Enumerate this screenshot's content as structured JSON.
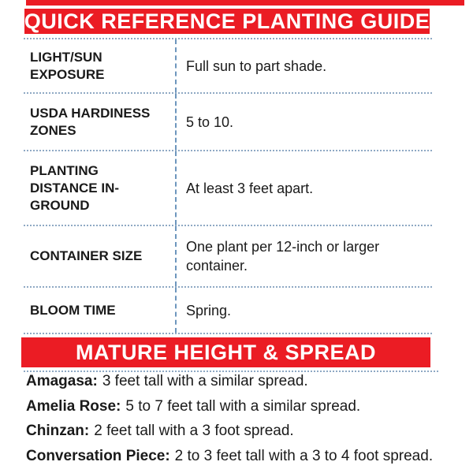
{
  "colors": {
    "accent_red": "#EB1C24",
    "border_blue": "#8FA9C4",
    "text": "#1A1A1A"
  },
  "header": {
    "title": "QUICK REFERENCE PLANTING GUIDE"
  },
  "table": {
    "rows": [
      {
        "label": "LIGHT/SUN EXPOSURE",
        "value": "Full sun to part shade."
      },
      {
        "label": "USDA HARDINESS ZONES",
        "value": "5 to 10."
      },
      {
        "label": "PLANTING DISTANCE IN-GROUND",
        "value": "At least 3 feet apart."
      },
      {
        "label": "CONTAINER SIZE",
        "value": "One plant per 12-inch or larger container."
      },
      {
        "label": "BLOOM TIME",
        "value": "Spring."
      }
    ]
  },
  "section2": {
    "title": "MATURE HEIGHT & SPREAD",
    "items": [
      {
        "name": "Amagasa:",
        "desc": "3 feet tall with a similar spread."
      },
      {
        "name": "Amelia Rose:",
        "desc": "5 to 7 feet tall with a similar spread."
      },
      {
        "name": "Chinzan:",
        "desc": "2 feet tall with a 3 foot spread."
      },
      {
        "name": "Conversation Piece:",
        "desc": "2 to 3 feet tall with a 3 to 4 foot spread."
      }
    ]
  }
}
